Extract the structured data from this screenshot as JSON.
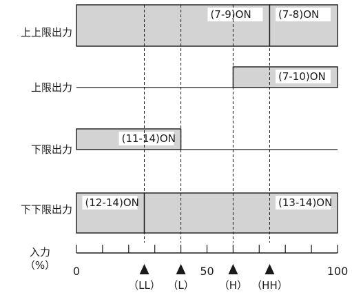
{
  "diagram": {
    "outputs": [
      {
        "label": "上上限出力",
        "segments": [
          {
            "from": 0,
            "to": 74,
            "state": "on",
            "tag": "(7-9)ON"
          },
          {
            "from": 74,
            "to": 100,
            "state": "on",
            "tag": "(7-8)ON"
          }
        ]
      },
      {
        "label": "上限出力",
        "segments": [
          {
            "from": 0,
            "to": 60,
            "state": "off"
          },
          {
            "from": 60,
            "to": 100,
            "state": "on",
            "tag": "(7-10)ON"
          }
        ]
      },
      {
        "label": "下限出力",
        "segments": [
          {
            "from": 0,
            "to": 40,
            "state": "on",
            "tag": "(11-14)ON"
          },
          {
            "from": 40,
            "to": 100,
            "state": "off"
          }
        ]
      },
      {
        "label": "下下限出力",
        "segments": [
          {
            "from": 0,
            "to": 26,
            "state": "on",
            "tag": "(12-14)ON"
          },
          {
            "from": 26,
            "to": 100,
            "state": "on",
            "tag": "(13-14)ON"
          }
        ]
      }
    ],
    "axis": {
      "title_line1": "入力",
      "title_line2": "（%）",
      "min": 0,
      "max": 100,
      "tick_labels": [
        "0",
        "50",
        "100"
      ],
      "tick_values": [
        0,
        50,
        100
      ],
      "minor_step": 10
    },
    "setpoints": [
      {
        "label": "（LL）",
        "value": 26
      },
      {
        "label": "（L）",
        "value": 40
      },
      {
        "label": "（H）",
        "value": 60
      },
      {
        "label": "（HH）",
        "value": 74
      }
    ],
    "colors": {
      "fill": "#d3d3d3",
      "line": "#1a1a1a"
    }
  }
}
